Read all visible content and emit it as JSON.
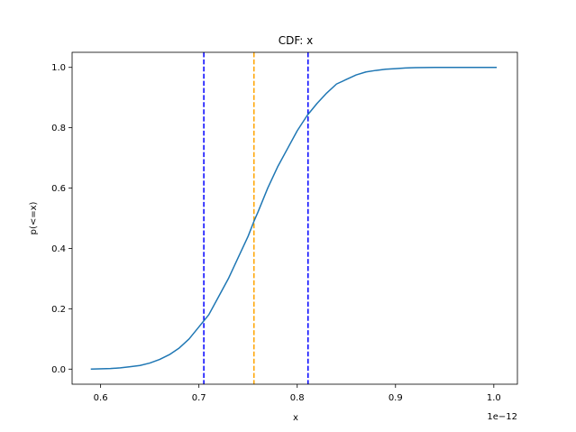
{
  "chart_data": {
    "type": "line",
    "title": "CDF: x",
    "xlabel": "x",
    "ylabel": "p(<=x)",
    "x_offset_label": "1e−12",
    "xlim": [
      0.571,
      1.024
    ],
    "ylim": [
      -0.05,
      1.05
    ],
    "xticks": [
      0.6,
      0.7,
      0.8,
      0.9,
      1.0
    ],
    "xtick_labels": [
      "0.6",
      "0.7",
      "0.8",
      "0.9",
      "1.0"
    ],
    "yticks": [
      0.0,
      0.2,
      0.4,
      0.6,
      0.8,
      1.0
    ],
    "ytick_labels": [
      "0.0",
      "0.2",
      "0.4",
      "0.6",
      "0.8",
      "1.0"
    ],
    "grid": false,
    "series": [
      {
        "color": "#1f77b4",
        "x": [
          0.59,
          0.61,
          0.62,
          0.63,
          0.64,
          0.65,
          0.66,
          0.67,
          0.68,
          0.69,
          0.7,
          0.705,
          0.71,
          0.72,
          0.73,
          0.74,
          0.75,
          0.756,
          0.76,
          0.77,
          0.78,
          0.79,
          0.8,
          0.81,
          0.82,
          0.83,
          0.84,
          0.85,
          0.86,
          0.87,
          0.88,
          0.89,
          0.9,
          0.91,
          0.92,
          0.94,
          0.96,
          0.98,
          1.003
        ],
        "y": [
          0.0,
          0.002,
          0.004,
          0.008,
          0.012,
          0.02,
          0.032,
          0.048,
          0.07,
          0.1,
          0.14,
          0.16,
          0.18,
          0.24,
          0.3,
          0.37,
          0.44,
          0.49,
          0.52,
          0.6,
          0.67,
          0.73,
          0.79,
          0.84,
          0.88,
          0.915,
          0.945,
          0.96,
          0.975,
          0.985,
          0.99,
          0.994,
          0.996,
          0.998,
          0.999,
          1.0,
          1.0,
          1.0,
          1.0
        ]
      }
    ],
    "vlines": [
      {
        "x": 0.705,
        "color": "#0000ff",
        "style": "dashed"
      },
      {
        "x": 0.756,
        "color": "#ffa500",
        "style": "dashed"
      },
      {
        "x": 0.811,
        "color": "#0000ff",
        "style": "dashed"
      }
    ]
  }
}
